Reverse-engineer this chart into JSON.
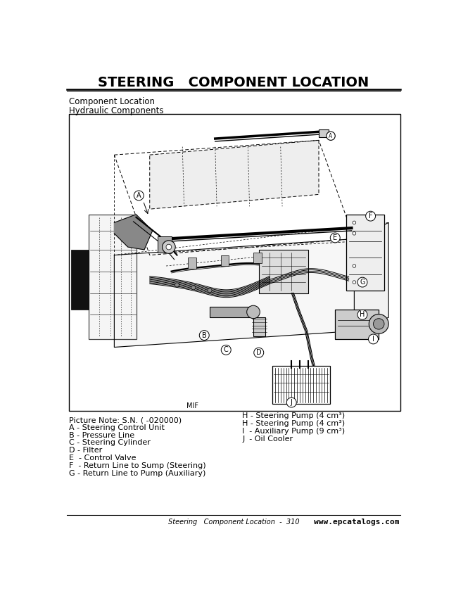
{
  "title": "STEERING   COMPONENT LOCATION",
  "subtitle1": "Component Location",
  "subtitle2": "Hydraulic Components",
  "picture_note": "Picture Note: S.N. ( -020000)",
  "mif_label": "MIF",
  "legend_left": [
    "A - Steering Control Unit",
    "B - Pressure Line",
    "C - Steering Cylinder",
    "D - Filter",
    "E  - Control Valve",
    "F  - Return Line to Sump (Steering)",
    "G - Return Line to Pump (Auxiliary)"
  ],
  "legend_right_header": "H - Steering Pump (4 cm³)",
  "legend_right": [
    "H - Steering Pump (4 cm³)",
    "I  - Auxiliary Pump (9 cm³)",
    "J  - Oil Cooler"
  ],
  "footer_center": "Steering   Component Location  -  310",
  "footer_right": "www.epcatalogs.com",
  "bg_color": "#ffffff",
  "title_fontsize": 14,
  "subtitle_fontsize": 8.5,
  "legend_fontsize": 8,
  "footer_fontsize": 7
}
